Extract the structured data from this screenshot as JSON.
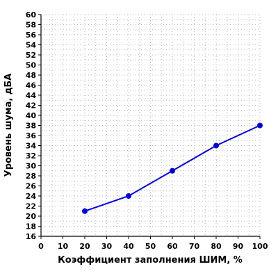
{
  "chart_data": {
    "type": "line",
    "title": "",
    "xlabel": "Коэффициент заполнения ШИМ, %",
    "ylabel": "Уровень шума, дБА",
    "xlim": [
      0,
      100
    ],
    "ylim": [
      16,
      60
    ],
    "xticks": [
      "0",
      "10",
      "20",
      "30",
      "40",
      "50",
      "60",
      "70",
      "80",
      "90",
      "100"
    ],
    "yticks": [
      "16",
      "18",
      "20",
      "22",
      "24",
      "26",
      "28",
      "30",
      "32",
      "34",
      "36",
      "38",
      "40",
      "42",
      "44",
      "46",
      "48",
      "50",
      "52",
      "54",
      "56",
      "58",
      "60"
    ],
    "grid": true,
    "legend": false,
    "series": [
      {
        "color": "#0000e0",
        "points": [
          {
            "x": 20,
            "y": 21
          },
          {
            "x": 40,
            "y": 24
          },
          {
            "x": 60,
            "y": 29
          },
          {
            "x": 80,
            "y": 34
          },
          {
            "x": 100,
            "y": 38
          }
        ]
      }
    ]
  }
}
